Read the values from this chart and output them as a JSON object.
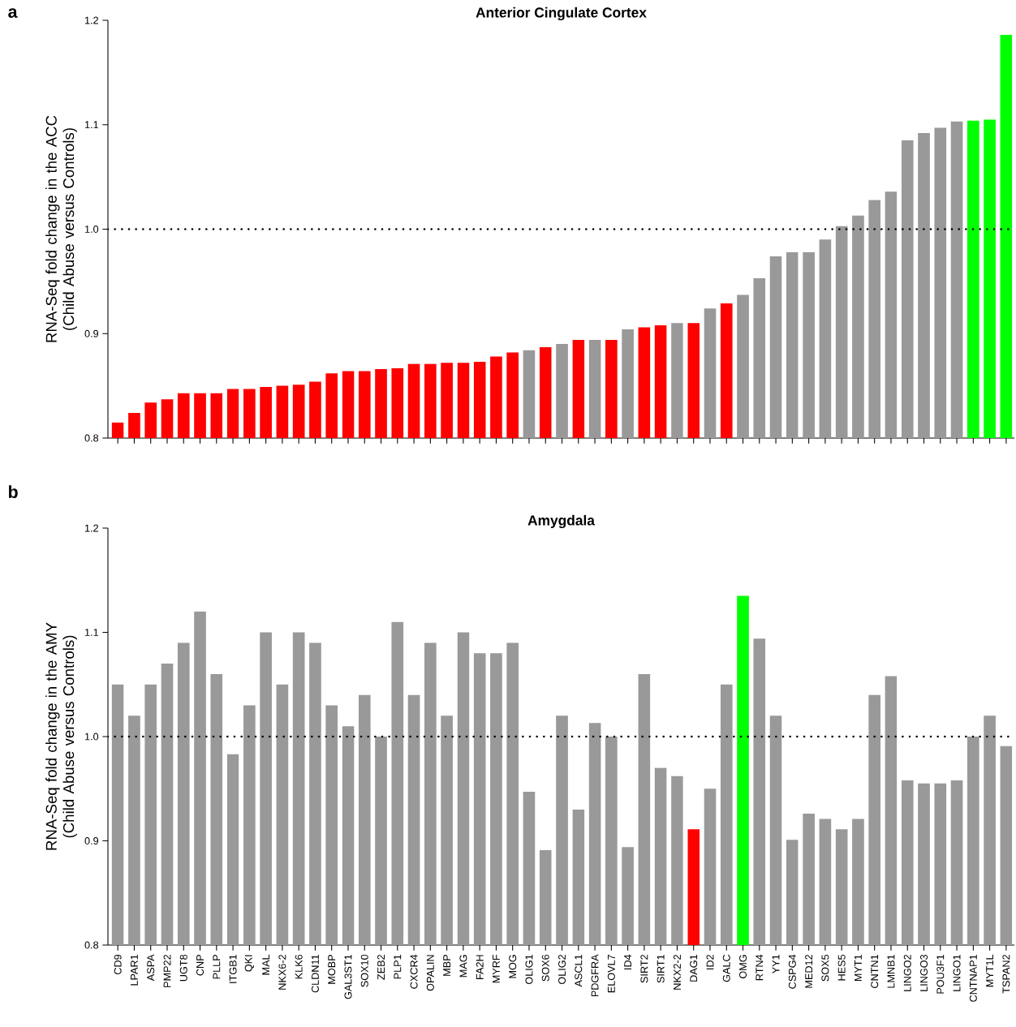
{
  "chart_data": [
    {
      "type": "bar",
      "title": "Anterior Cingulate Cortex",
      "ylabel": "RNA-Seq fold change in the ACC (Child Abuse versus Controls)",
      "annotations": [
        "a"
      ],
      "categories": [
        null,
        null,
        null,
        null,
        null,
        null,
        null,
        null,
        null,
        null,
        null,
        null,
        null,
        null,
        null,
        null,
        null,
        null,
        null,
        null,
        null,
        null,
        null,
        null,
        null,
        null,
        null,
        null,
        null,
        null,
        null,
        null,
        null,
        null,
        null,
        null,
        null,
        null,
        null,
        null,
        null,
        null,
        null,
        null,
        null,
        null,
        null,
        null,
        null,
        null,
        null,
        null,
        null,
        null,
        null
      ],
      "values": [
        0.815,
        0.824,
        0.834,
        0.837,
        0.843,
        0.843,
        0.843,
        0.847,
        0.847,
        0.849,
        0.85,
        0.851,
        0.854,
        0.862,
        0.864,
        0.864,
        0.866,
        0.867,
        0.871,
        0.871,
        0.872,
        0.872,
        0.873,
        0.878,
        0.882,
        0.884,
        0.887,
        0.89,
        0.894,
        0.894,
        0.894,
        0.904,
        0.906,
        0.908,
        0.91,
        0.91,
        0.924,
        0.929,
        0.937,
        0.953,
        0.974,
        0.978,
        0.978,
        0.99,
        1.003,
        1.013,
        1.028,
        1.036,
        1.085,
        1.092,
        1.097,
        1.103,
        1.104,
        1.105,
        1.186
      ],
      "colors": [
        "#ff0000",
        "#ff0000",
        "#ff0000",
        "#ff0000",
        "#ff0000",
        "#ff0000",
        "#ff0000",
        "#ff0000",
        "#ff0000",
        "#ff0000",
        "#ff0000",
        "#ff0000",
        "#ff0000",
        "#ff0000",
        "#ff0000",
        "#ff0000",
        "#ff0000",
        "#ff0000",
        "#ff0000",
        "#ff0000",
        "#ff0000",
        "#ff0000",
        "#ff0000",
        "#ff0000",
        "#ff0000",
        "#999999",
        "#ff0000",
        "#999999",
        "#ff0000",
        "#999999",
        "#ff0000",
        "#999999",
        "#ff0000",
        "#ff0000",
        "#999999",
        "#ff0000",
        "#999999",
        "#ff0000",
        "#999999",
        "#999999",
        "#999999",
        "#999999",
        "#999999",
        "#999999",
        "#999999",
        "#999999",
        "#999999",
        "#999999",
        "#999999",
        "#999999",
        "#999999",
        "#999999",
        "#00ff00",
        "#00ff00",
        "#00ff00"
      ],
      "ylim": [
        0.8,
        1.2
      ],
      "yticks": [
        {
          "value": 0.8,
          "label": "0.8"
        },
        {
          "value": 0.9,
          "label": "0.9"
        },
        {
          "value": 1.0,
          "label": "1.0"
        },
        {
          "value": 1.1,
          "label": "1.1"
        },
        {
          "value": 1.2,
          "label": "1.2"
        }
      ],
      "tick_labels": "y",
      "ref_lines": [
        {
          "axis": "y",
          "value": 1.0,
          "line_style": "dotted",
          "color": "#000000"
        }
      ]
    },
    {
      "type": "bar",
      "title": "Amygdala",
      "ylabel": "RNA-Seq fold change in the AMY (Child Abuse versus Controls)",
      "annotations": [
        "b"
      ],
      "categories": [
        "CD9",
        "LPAR1",
        "ASPA",
        "PMP22",
        "UGT8",
        "CNP",
        "PLLP",
        "ITGB1",
        "QKI",
        "MAL",
        "NKX6-2",
        "KLK6",
        "CLDN11",
        "MOBP",
        "GAL3ST1",
        "SOX10",
        "ZEB2",
        "PLP1",
        "CXCR4",
        "OPALIN",
        "MBP",
        "MAG",
        "FA2H",
        "MYRF",
        "MOG",
        "OLIG1",
        "SOX6",
        "OLIG2",
        "ASCL1",
        "PDGFRA",
        "ELOVL7",
        "ID4",
        "SIRT2",
        "SIRT1",
        "NKX2-2",
        "DAG1",
        "ID2",
        "GALC",
        "OMG",
        "RTN4",
        "YY1",
        "CSPG4",
        "MED12",
        "SOX5",
        "HES5",
        "MYT1",
        "CNTN1",
        "LMNB1",
        "LINGO2",
        "LINGO3",
        "POU3F1",
        "LINGO1",
        "CNTNAP1",
        "MYT1L",
        "TSPAN2"
      ],
      "values": [
        1.05,
        1.02,
        1.05,
        1.07,
        1.09,
        1.12,
        1.06,
        0.983,
        1.03,
        1.1,
        1.05,
        1.1,
        1.09,
        1.03,
        1.01,
        1.04,
        1.0,
        1.11,
        1.04,
        1.09,
        1.02,
        1.1,
        1.08,
        1.08,
        1.09,
        0.947,
        0.891,
        1.02,
        0.93,
        1.013,
        1.0,
        0.894,
        1.06,
        0.97,
        0.962,
        0.911,
        0.95,
        1.05,
        1.135,
        1.094,
        1.02,
        0.901,
        0.926,
        0.921,
        0.911,
        0.921,
        1.04,
        1.058,
        0.958,
        0.955,
        0.955,
        0.958,
        1.0,
        1.02,
        0.991
      ],
      "colors": [
        "#999999",
        "#999999",
        "#999999",
        "#999999",
        "#999999",
        "#999999",
        "#999999",
        "#999999",
        "#999999",
        "#999999",
        "#999999",
        "#999999",
        "#999999",
        "#999999",
        "#999999",
        "#999999",
        "#999999",
        "#999999",
        "#999999",
        "#999999",
        "#999999",
        "#999999",
        "#999999",
        "#999999",
        "#999999",
        "#999999",
        "#999999",
        "#999999",
        "#999999",
        "#999999",
        "#999999",
        "#999999",
        "#999999",
        "#999999",
        "#999999",
        "#ff0000",
        "#999999",
        "#999999",
        "#00ff00",
        "#999999",
        "#999999",
        "#999999",
        "#999999",
        "#999999",
        "#999999",
        "#999999",
        "#999999",
        "#999999",
        "#999999",
        "#999999",
        "#999999",
        "#999999",
        "#999999",
        "#999999",
        "#999999"
      ],
      "ylim": [
        0.8,
        1.2
      ],
      "yticks": [
        {
          "value": 0.8,
          "label": "0.8"
        },
        {
          "value": 0.9,
          "label": "0.9"
        },
        {
          "value": 1.0,
          "label": "1.0"
        },
        {
          "value": 1.1,
          "label": "1.1"
        },
        {
          "value": 1.2,
          "label": "1.2"
        }
      ],
      "ref_lines": [
        {
          "axis": "y",
          "value": 1.0,
          "line_style": "dotted",
          "color": "#000000"
        }
      ]
    }
  ]
}
